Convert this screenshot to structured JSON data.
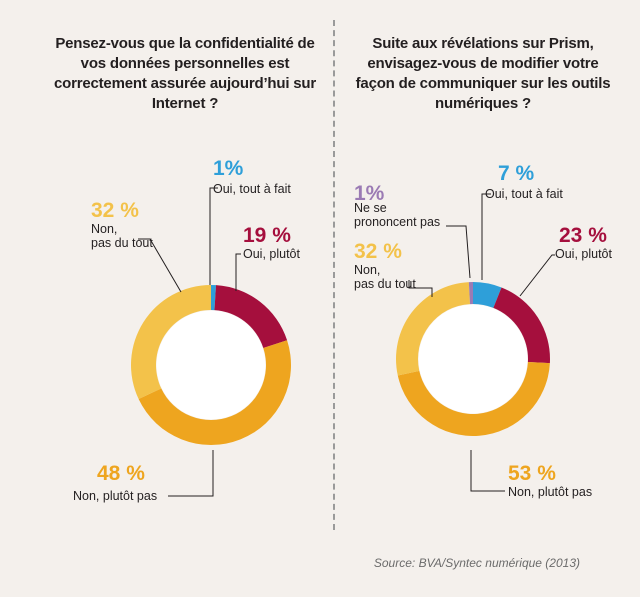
{
  "source": "Source: BVA/Syntec numérique (2013)",
  "colors": {
    "oui_tout_a_fait": "#2e9fd9",
    "oui_plutot": "#a50f3d",
    "non_plutot_pas": "#eea51f",
    "non_pas_du_tout": "#f3c24a",
    "ne_se_prononcent_pas": "#9b7bb4"
  },
  "chart_data": [
    {
      "type": "pie",
      "title": "Pensez-vous que la confidentialité de vos données personnelles est correctement assurée aujourd’hui sur Internet ?",
      "categories": [
        "Oui, tout à fait",
        "Oui, plutôt",
        "Non, plutôt pas",
        "Non, pas du tout"
      ],
      "values": [
        1,
        19,
        48,
        32
      ],
      "value_labels": [
        "1%",
        "19 %",
        "48 %",
        "32 %"
      ]
    },
    {
      "type": "pie",
      "title": "Suite aux révélations sur Prism, envisagez-vous de modifier votre façon de communiquer sur les outils numériques ?",
      "categories": [
        "Oui, tout à fait",
        "Oui, plutôt",
        "Non, plutôt pas",
        "Non, pas du tout",
        "Ne se prononcent pas"
      ],
      "values": [
        7,
        23,
        53,
        32,
        1
      ],
      "value_labels": [
        "7 %",
        "23 %",
        "53 %",
        "32 %",
        "1%"
      ]
    }
  ]
}
